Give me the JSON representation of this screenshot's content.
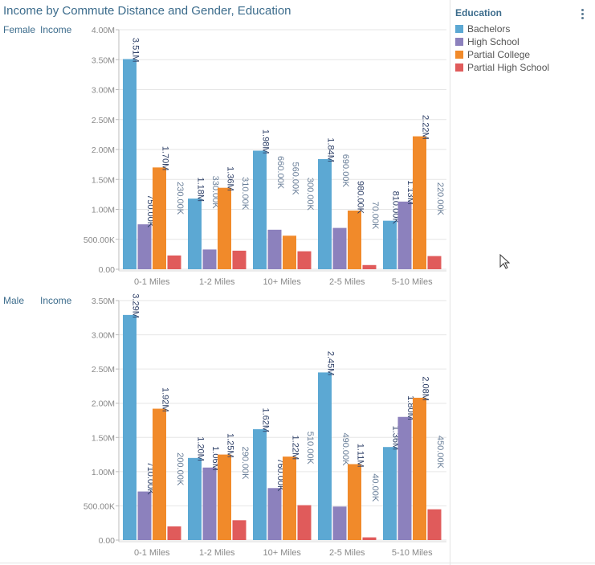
{
  "title": "Income by Commute Distance and Gender, Education",
  "legend": {
    "title": "Education"
  },
  "colors": {
    "Bachelors": "#5ca8d3",
    "High School": "#8c81bd",
    "Partial College": "#f18a2a",
    "Partial High School": "#e05b5b"
  },
  "icons": {
    "menu": "kebab-menu-icon",
    "cursor": "mouse-pointer-icon"
  },
  "chart_data": [
    {
      "type": "bar",
      "row_label": "Female",
      "measure_label": "Income",
      "categories": [
        "0-1 Miles",
        "1-2 Miles",
        "10+ Miles",
        "2-5 Miles",
        "5-10 Miles"
      ],
      "yticks": [
        "0.00",
        "500.00K",
        "1.00M",
        "1.50M",
        "2.00M",
        "2.50M",
        "3.00M",
        "3.50M",
        "4.00M"
      ],
      "ylim": [
        0,
        4000000
      ],
      "series": [
        {
          "name": "Bachelors",
          "values": [
            3510000,
            1180000,
            1980000,
            1840000,
            810000
          ],
          "labels": [
            "3.51M",
            "1.18M",
            "1.98M",
            "1.84M",
            "810.00K"
          ]
        },
        {
          "name": "High School",
          "values": [
            750000,
            330000,
            660000,
            690000,
            1130000
          ],
          "labels": [
            "750.00K",
            "330.00K",
            "660.00K",
            "690.00K",
            "1.13M"
          ]
        },
        {
          "name": "Partial College",
          "values": [
            1700000,
            1360000,
            560000,
            980000,
            2220000
          ],
          "labels": [
            "1.70M",
            "1.36M",
            "560.00K",
            "980.00K",
            "2.22M"
          ]
        },
        {
          "name": "Partial High School",
          "values": [
            230000,
            310000,
            300000,
            70000,
            220000
          ],
          "labels": [
            "230.00K",
            "310.00K",
            "300.00K",
            "70.00K",
            "220.00K"
          ]
        }
      ]
    },
    {
      "type": "bar",
      "row_label": "Male",
      "measure_label": "Income",
      "categories": [
        "0-1 Miles",
        "1-2 Miles",
        "10+ Miles",
        "2-5 Miles",
        "5-10 Miles"
      ],
      "yticks": [
        "0.00",
        "500.00K",
        "1.00M",
        "1.50M",
        "2.00M",
        "2.50M",
        "3.00M",
        "3.50M"
      ],
      "ylim": [
        0,
        3500000
      ],
      "series": [
        {
          "name": "Bachelors",
          "values": [
            3290000,
            1200000,
            1620000,
            2450000,
            1360000
          ],
          "labels": [
            "3.29M",
            "1.20M",
            "1.62M",
            "2.45M",
            "1.36M"
          ]
        },
        {
          "name": "High School",
          "values": [
            710000,
            1060000,
            760000,
            490000,
            1800000
          ],
          "labels": [
            "710.00K",
            "1.06M",
            "760.00K",
            "490.00K",
            "1.80M"
          ]
        },
        {
          "name": "Partial College",
          "values": [
            1920000,
            1250000,
            1220000,
            1110000,
            2080000
          ],
          "labels": [
            "1.92M",
            "1.25M",
            "1.22M",
            "1.11M",
            "2.08M"
          ]
        },
        {
          "name": "Partial High School",
          "values": [
            200000,
            290000,
            510000,
            40000,
            450000
          ],
          "labels": [
            "200.00K",
            "290.00K",
            "510.00K",
            "40.00K",
            "450.00K"
          ]
        }
      ]
    }
  ]
}
